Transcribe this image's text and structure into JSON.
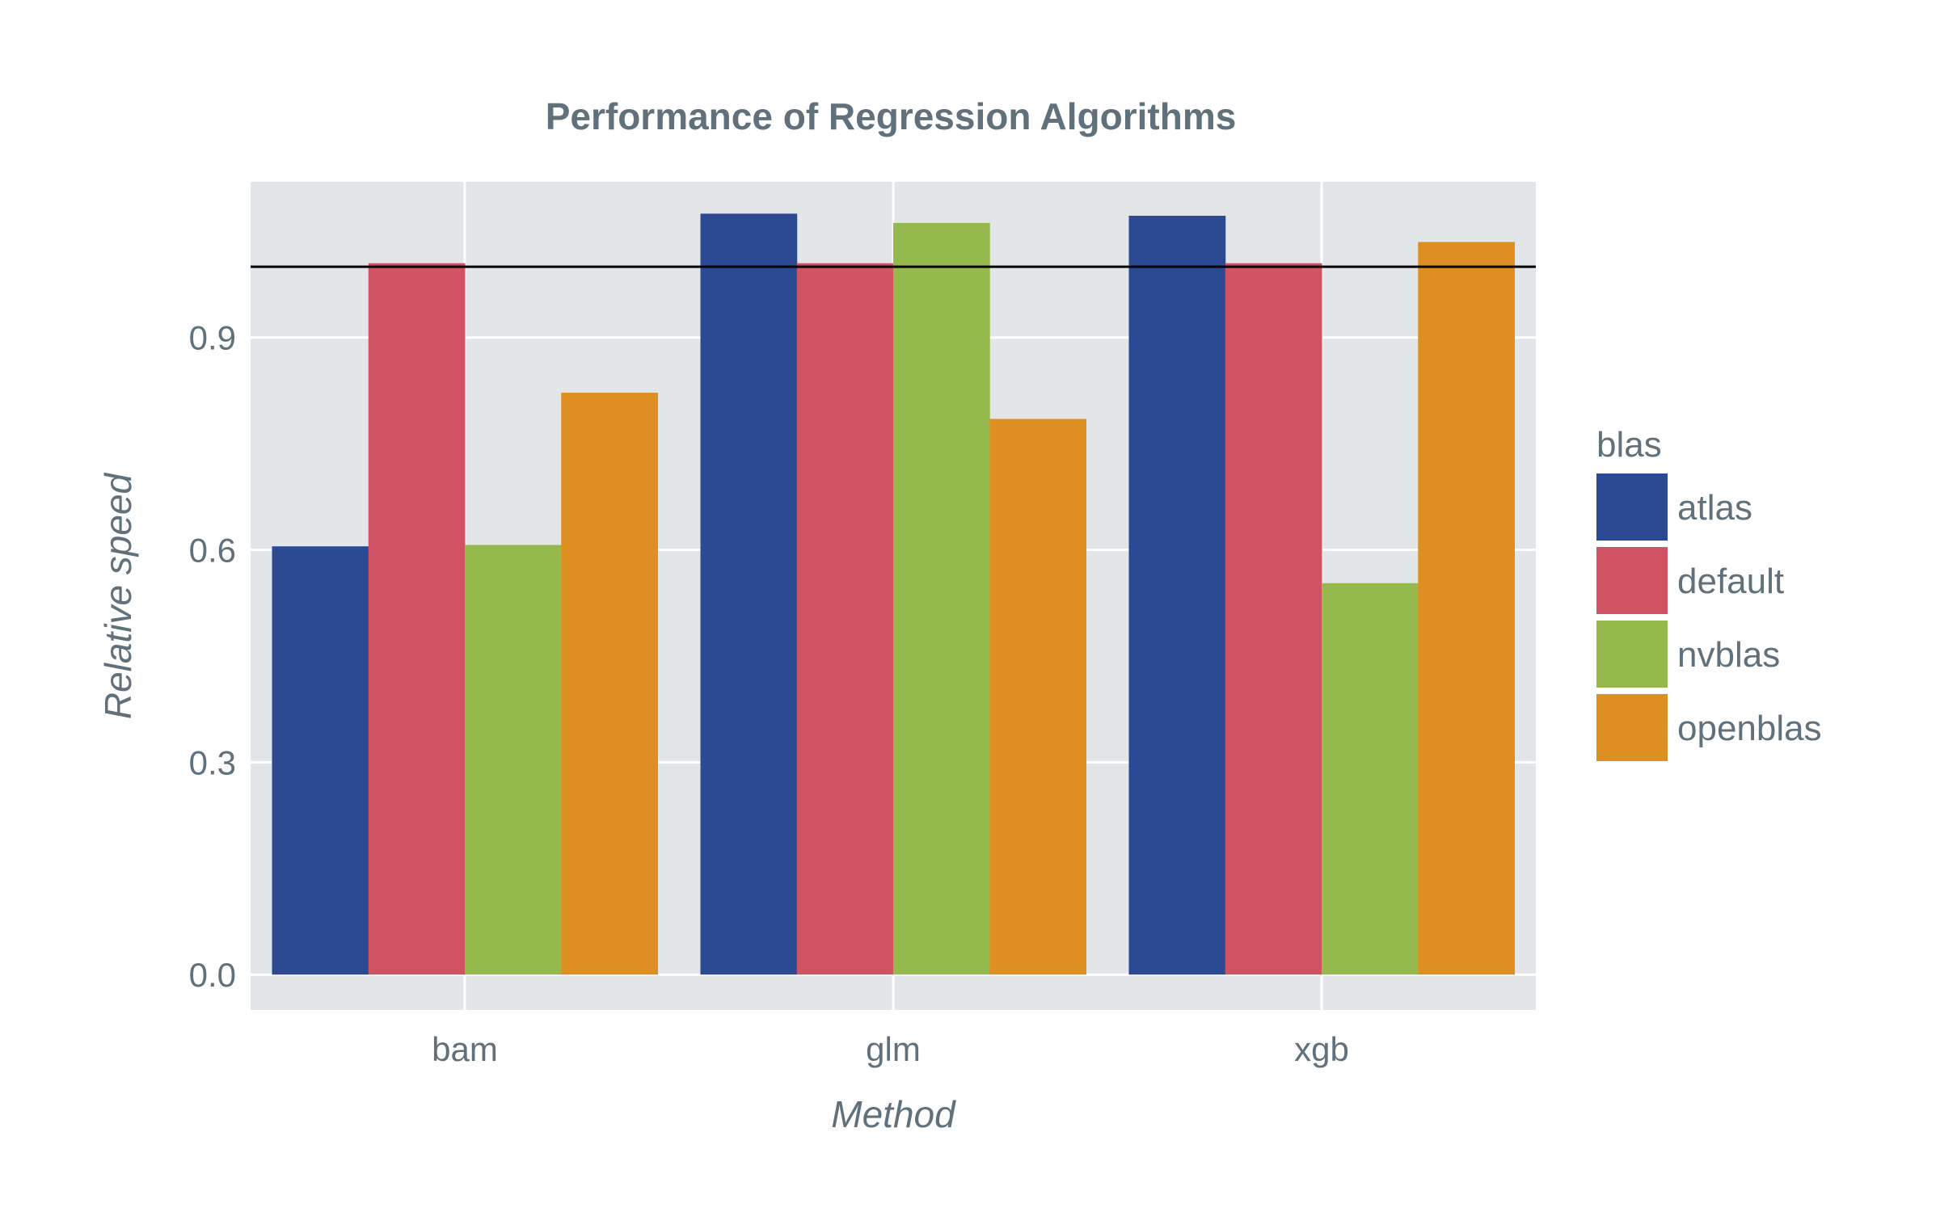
{
  "chart_data": {
    "type": "bar",
    "title": "Performance of Regression Algorithms",
    "xlabel": "Method",
    "ylabel": "Relative speed",
    "categories": [
      "bam",
      "glm",
      "xgb"
    ],
    "series": [
      {
        "name": "atlas",
        "values": [
          0.605,
          1.075,
          1.072
        ],
        "color": "#2c4a94"
      },
      {
        "name": "default",
        "values": [
          1.005,
          1.005,
          1.005
        ],
        "color": "#cf5363"
      },
      {
        "name": "nvblas",
        "values": [
          0.607,
          1.062,
          0.553
        ],
        "color": "#96b94e"
      },
      {
        "name": "openblas",
        "values": [
          0.822,
          0.785,
          1.035
        ],
        "color": "#dd8f22"
      }
    ],
    "yticks": [
      "0.0",
      "0.3",
      "0.6",
      "0.9"
    ],
    "ylim": [
      -0.05,
      1.12
    ],
    "reference_line": 1.0,
    "legend_title": "blas",
    "legend_position": "right",
    "grid": true,
    "plot_background": "#e3e6e9"
  }
}
